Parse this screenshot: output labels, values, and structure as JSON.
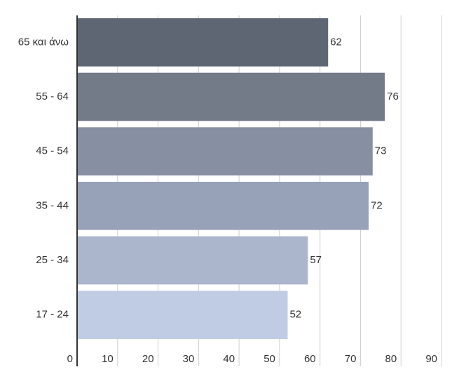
{
  "chart_data": {
    "type": "hbar",
    "categories": [
      "65 και άνω",
      "55 - 64",
      "45 - 54",
      "35 - 44",
      "25 - 34",
      "17 - 24"
    ],
    "values": [
      62,
      76,
      73,
      72,
      57,
      52
    ],
    "colors": [
      "#5f6673",
      "#737a88",
      "#878fa2",
      "#97a1b7",
      "#abb6cc",
      "#bfcce3"
    ],
    "xlim": [
      0,
      90
    ],
    "xticks": [
      0,
      10,
      20,
      30,
      40,
      50,
      60,
      70,
      80,
      90
    ],
    "grid": true
  }
}
